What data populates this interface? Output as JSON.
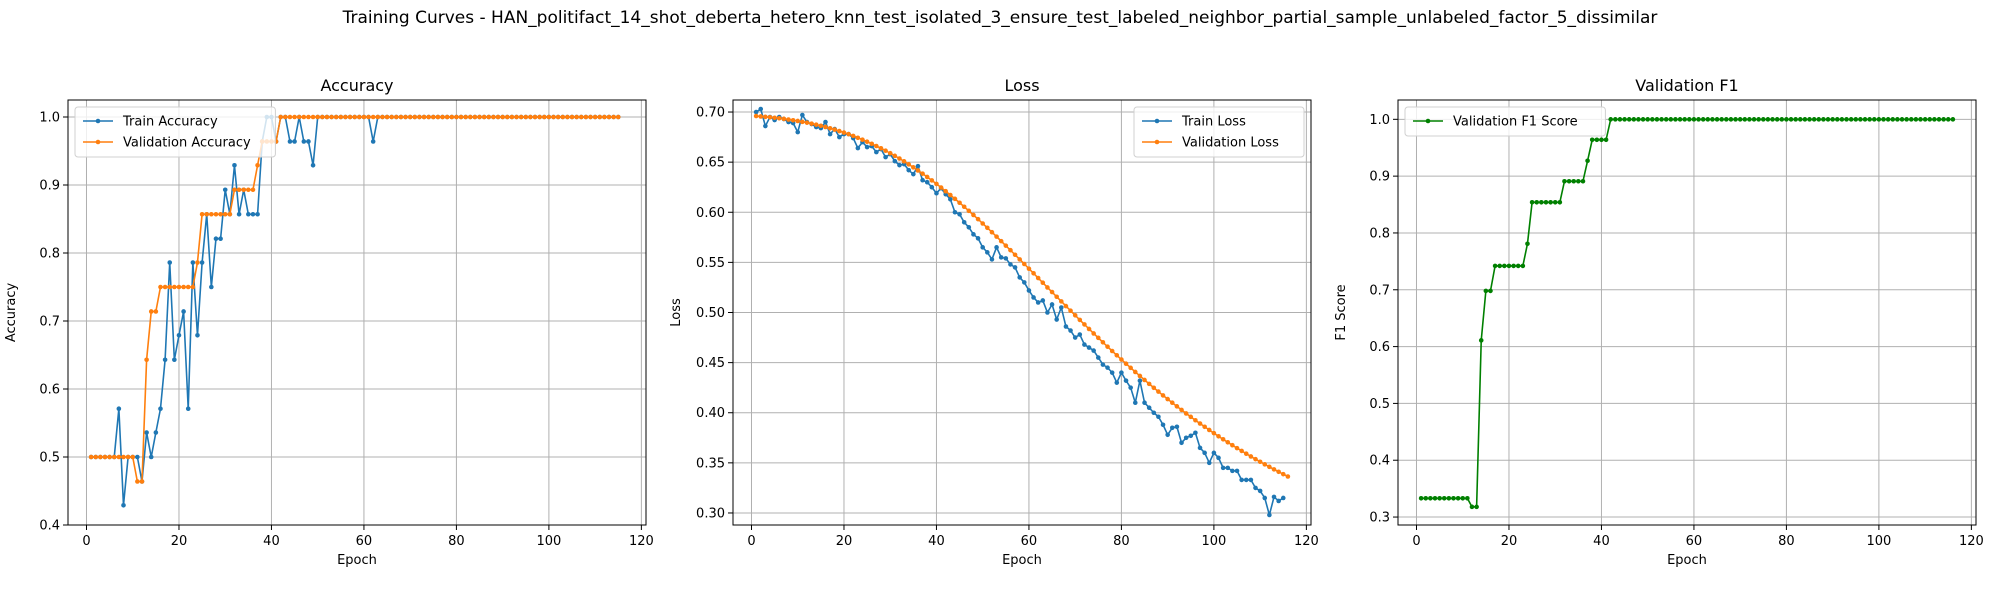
{
  "figure": {
    "suptitle": "Training Curves - HAN_politifact_14_shot_deberta_hetero_knn_test_isolated_3_ensure_test_labeled_neighbor_partial_sample_unlabeled_factor_5_dissimilar"
  },
  "colors": {
    "blue": "#1f77b4",
    "orange": "#ff7f0e",
    "green": "#008000",
    "grid": "#b0b0b0"
  },
  "chart_data": [
    {
      "type": "line",
      "title": "Accuracy",
      "xlabel": "Epoch",
      "ylabel": "Accuracy",
      "xlim": [
        -4,
        121
      ],
      "ylim": [
        0.4,
        1.025
      ],
      "xticks": [
        0,
        20,
        40,
        60,
        80,
        100,
        120
      ],
      "yticks": [
        0.4,
        0.5,
        0.6,
        0.7,
        0.8,
        0.9,
        1.0
      ],
      "grid": true,
      "legend": "upper left",
      "series": [
        {
          "name": "Train Accuracy",
          "color": "#1f77b4",
          "x_start": 1,
          "values": [
            0.5,
            0.5,
            0.5,
            0.5,
            0.5,
            0.5,
            0.571,
            0.429,
            0.5,
            0.5,
            0.5,
            0.464,
            0.536,
            0.5,
            0.536,
            0.571,
            0.643,
            0.786,
            0.643,
            0.679,
            0.714,
            0.571,
            0.786,
            0.679,
            0.786,
            0.857,
            0.75,
            0.821,
            0.821,
            0.893,
            0.857,
            0.929,
            0.857,
            0.893,
            0.857,
            0.857,
            0.857,
            0.964,
            1.0,
            1.0,
            0.964,
            1.0,
            1.0,
            0.964,
            0.964,
            1.0,
            0.964,
            0.964,
            0.929,
            1.0,
            1.0,
            1.0,
            1.0,
            1.0,
            1.0,
            1.0,
            1.0,
            1.0,
            1.0,
            1.0,
            1.0,
            0.964,
            1.0,
            1.0,
            1.0,
            1.0,
            1.0,
            1.0,
            1.0,
            1.0,
            1.0,
            1.0,
            1.0,
            1.0,
            1.0,
            1.0,
            1.0,
            1.0,
            1.0,
            1.0,
            1.0,
            1.0,
            1.0,
            1.0,
            1.0,
            1.0,
            1.0,
            1.0,
            1.0,
            1.0,
            1.0,
            1.0,
            1.0,
            1.0,
            1.0,
            1.0,
            1.0,
            1.0,
            1.0,
            1.0,
            1.0,
            1.0,
            1.0,
            1.0,
            1.0,
            1.0,
            1.0,
            1.0,
            1.0,
            1.0,
            1.0,
            1.0,
            1.0,
            1.0,
            1.0
          ]
        },
        {
          "name": "Validation Accuracy",
          "color": "#ff7f0e",
          "x_start": 1,
          "values": [
            0.5,
            0.5,
            0.5,
            0.5,
            0.5,
            0.5,
            0.5,
            0.5,
            0.5,
            0.5,
            0.464,
            0.464,
            0.643,
            0.714,
            0.714,
            0.75,
            0.75,
            0.75,
            0.75,
            0.75,
            0.75,
            0.75,
            0.75,
            0.786,
            0.857,
            0.857,
            0.857,
            0.857,
            0.857,
            0.857,
            0.857,
            0.893,
            0.893,
            0.893,
            0.893,
            0.893,
            0.929,
            0.964,
            0.964,
            0.964,
            0.964,
            1.0,
            1.0,
            1.0,
            1.0,
            1.0,
            1.0,
            1.0,
            1.0,
            1.0,
            1.0,
            1.0,
            1.0,
            1.0,
            1.0,
            1.0,
            1.0,
            1.0,
            1.0,
            1.0,
            1.0,
            1.0,
            1.0,
            1.0,
            1.0,
            1.0,
            1.0,
            1.0,
            1.0,
            1.0,
            1.0,
            1.0,
            1.0,
            1.0,
            1.0,
            1.0,
            1.0,
            1.0,
            1.0,
            1.0,
            1.0,
            1.0,
            1.0,
            1.0,
            1.0,
            1.0,
            1.0,
            1.0,
            1.0,
            1.0,
            1.0,
            1.0,
            1.0,
            1.0,
            1.0,
            1.0,
            1.0,
            1.0,
            1.0,
            1.0,
            1.0,
            1.0,
            1.0,
            1.0,
            1.0,
            1.0,
            1.0,
            1.0,
            1.0,
            1.0,
            1.0,
            1.0,
            1.0,
            1.0,
            1.0
          ]
        }
      ]
    },
    {
      "type": "line",
      "title": "Loss",
      "xlabel": "Epoch",
      "ylabel": "Loss",
      "xlim": [
        -4,
        121
      ],
      "ylim": [
        0.288,
        0.712
      ],
      "xticks": [
        0,
        20,
        40,
        60,
        80,
        100,
        120
      ],
      "yticks": [
        0.3,
        0.35,
        0.4,
        0.45,
        0.5,
        0.55,
        0.6,
        0.65,
        0.7
      ],
      "grid": true,
      "legend": "upper right",
      "series": [
        {
          "name": "Train Loss",
          "color": "#1f77b4",
          "x_start": 1,
          "values": [
            0.7,
            0.703,
            0.686,
            0.695,
            0.692,
            0.695,
            0.693,
            0.69,
            0.689,
            0.68,
            0.697,
            0.69,
            0.688,
            0.685,
            0.684,
            0.69,
            0.678,
            0.683,
            0.675,
            0.678,
            0.678,
            0.674,
            0.664,
            0.67,
            0.665,
            0.666,
            0.66,
            0.663,
            0.655,
            0.658,
            0.651,
            0.647,
            0.648,
            0.642,
            0.638,
            0.646,
            0.632,
            0.63,
            0.625,
            0.619,
            0.624,
            0.618,
            0.613,
            0.6,
            0.598,
            0.59,
            0.585,
            0.578,
            0.574,
            0.565,
            0.56,
            0.553,
            0.565,
            0.555,
            0.554,
            0.548,
            0.545,
            0.535,
            0.53,
            0.522,
            0.515,
            0.51,
            0.512,
            0.5,
            0.508,
            0.493,
            0.505,
            0.486,
            0.482,
            0.475,
            0.478,
            0.468,
            0.465,
            0.462,
            0.455,
            0.448,
            0.445,
            0.44,
            0.43,
            0.44,
            0.432,
            0.425,
            0.41,
            0.432,
            0.41,
            0.405,
            0.4,
            0.396,
            0.388,
            0.378,
            0.385,
            0.386,
            0.37,
            0.375,
            0.377,
            0.38,
            0.365,
            0.36,
            0.35,
            0.36,
            0.355,
            0.345,
            0.345,
            0.342,
            0.342,
            0.333,
            0.333,
            0.333,
            0.325,
            0.322,
            0.315,
            0.298,
            0.316,
            0.312,
            0.315
          ]
        },
        {
          "name": "Validation Loss",
          "color": "#ff7f0e",
          "x_start": 1,
          "values": [
            0.696,
            0.6956,
            0.6952,
            0.6948,
            0.6943,
            0.6938,
            0.6932,
            0.6925,
            0.6918,
            0.6911,
            0.6902,
            0.6894,
            0.6884,
            0.6874,
            0.6863,
            0.6851,
            0.6838,
            0.6825,
            0.681,
            0.6795,
            0.6779,
            0.6762,
            0.6743,
            0.6724,
            0.6704,
            0.6683,
            0.6661,
            0.6638,
            0.6614,
            0.6589,
            0.6563,
            0.6536,
            0.6508,
            0.6478,
            0.6448,
            0.6417,
            0.6385,
            0.6352,
            0.6318,
            0.6283,
            0.6247,
            0.621,
            0.6172,
            0.6134,
            0.6095,
            0.6055,
            0.6014,
            0.5973,
            0.5931,
            0.5888,
            0.5845,
            0.5801,
            0.5757,
            0.5712,
            0.5667,
            0.5622,
            0.5576,
            0.553,
            0.5484,
            0.5437,
            0.5391,
            0.5344,
            0.5297,
            0.525,
            0.5204,
            0.5157,
            0.5111,
            0.5064,
            0.5018,
            0.4972,
            0.4926,
            0.4881,
            0.4836,
            0.4791,
            0.4747,
            0.4703,
            0.4659,
            0.4616,
            0.4573,
            0.4531,
            0.4489,
            0.4448,
            0.4407,
            0.4367,
            0.4327,
            0.4288,
            0.4249,
            0.4211,
            0.4173,
            0.4136,
            0.41,
            0.4064,
            0.4028,
            0.3993,
            0.3959,
            0.3925,
            0.3892,
            0.386,
            0.3828,
            0.3796,
            0.3765,
            0.3735,
            0.3705,
            0.3676,
            0.3647,
            0.3619,
            0.3591,
            0.3564,
            0.3537,
            0.3511,
            0.3485,
            0.346,
            0.3435,
            0.3411,
            0.3387,
            0.3364
          ]
        }
      ]
    },
    {
      "type": "line",
      "title": "Validation F1",
      "xlabel": "Epoch",
      "ylabel": "F1 Score",
      "xlim": [
        -4,
        121
      ],
      "ylim": [
        0.286,
        1.034
      ],
      "xticks": [
        0,
        20,
        40,
        60,
        80,
        100,
        120
      ],
      "yticks": [
        0.3,
        0.4,
        0.5,
        0.6,
        0.7,
        0.8,
        0.9,
        1.0
      ],
      "grid": true,
      "legend": "upper left",
      "series": [
        {
          "name": "Validation F1 Score",
          "color": "#008000",
          "x_start": 1,
          "values": [
            0.333,
            0.333,
            0.333,
            0.333,
            0.333,
            0.333,
            0.333,
            0.333,
            0.333,
            0.333,
            0.333,
            0.318,
            0.318,
            0.611,
            0.698,
            0.698,
            0.742,
            0.742,
            0.742,
            0.742,
            0.742,
            0.742,
            0.742,
            0.781,
            0.854,
            0.854,
            0.854,
            0.854,
            0.854,
            0.854,
            0.854,
            0.891,
            0.891,
            0.891,
            0.891,
            0.891,
            0.927,
            0.964,
            0.964,
            0.964,
            0.964,
            1.0,
            1.0,
            1.0,
            1.0,
            1.0,
            1.0,
            1.0,
            1.0,
            1.0,
            1.0,
            1.0,
            1.0,
            1.0,
            1.0,
            1.0,
            1.0,
            1.0,
            1.0,
            1.0,
            1.0,
            1.0,
            1.0,
            1.0,
            1.0,
            1.0,
            1.0,
            1.0,
            1.0,
            1.0,
            1.0,
            1.0,
            1.0,
            1.0,
            1.0,
            1.0,
            1.0,
            1.0,
            1.0,
            1.0,
            1.0,
            1.0,
            1.0,
            1.0,
            1.0,
            1.0,
            1.0,
            1.0,
            1.0,
            1.0,
            1.0,
            1.0,
            1.0,
            1.0,
            1.0,
            1.0,
            1.0,
            1.0,
            1.0,
            1.0,
            1.0,
            1.0,
            1.0,
            1.0,
            1.0,
            1.0,
            1.0,
            1.0,
            1.0,
            1.0,
            1.0,
            1.0,
            1.0,
            1.0,
            1.0,
            1.0
          ]
        }
      ]
    }
  ]
}
